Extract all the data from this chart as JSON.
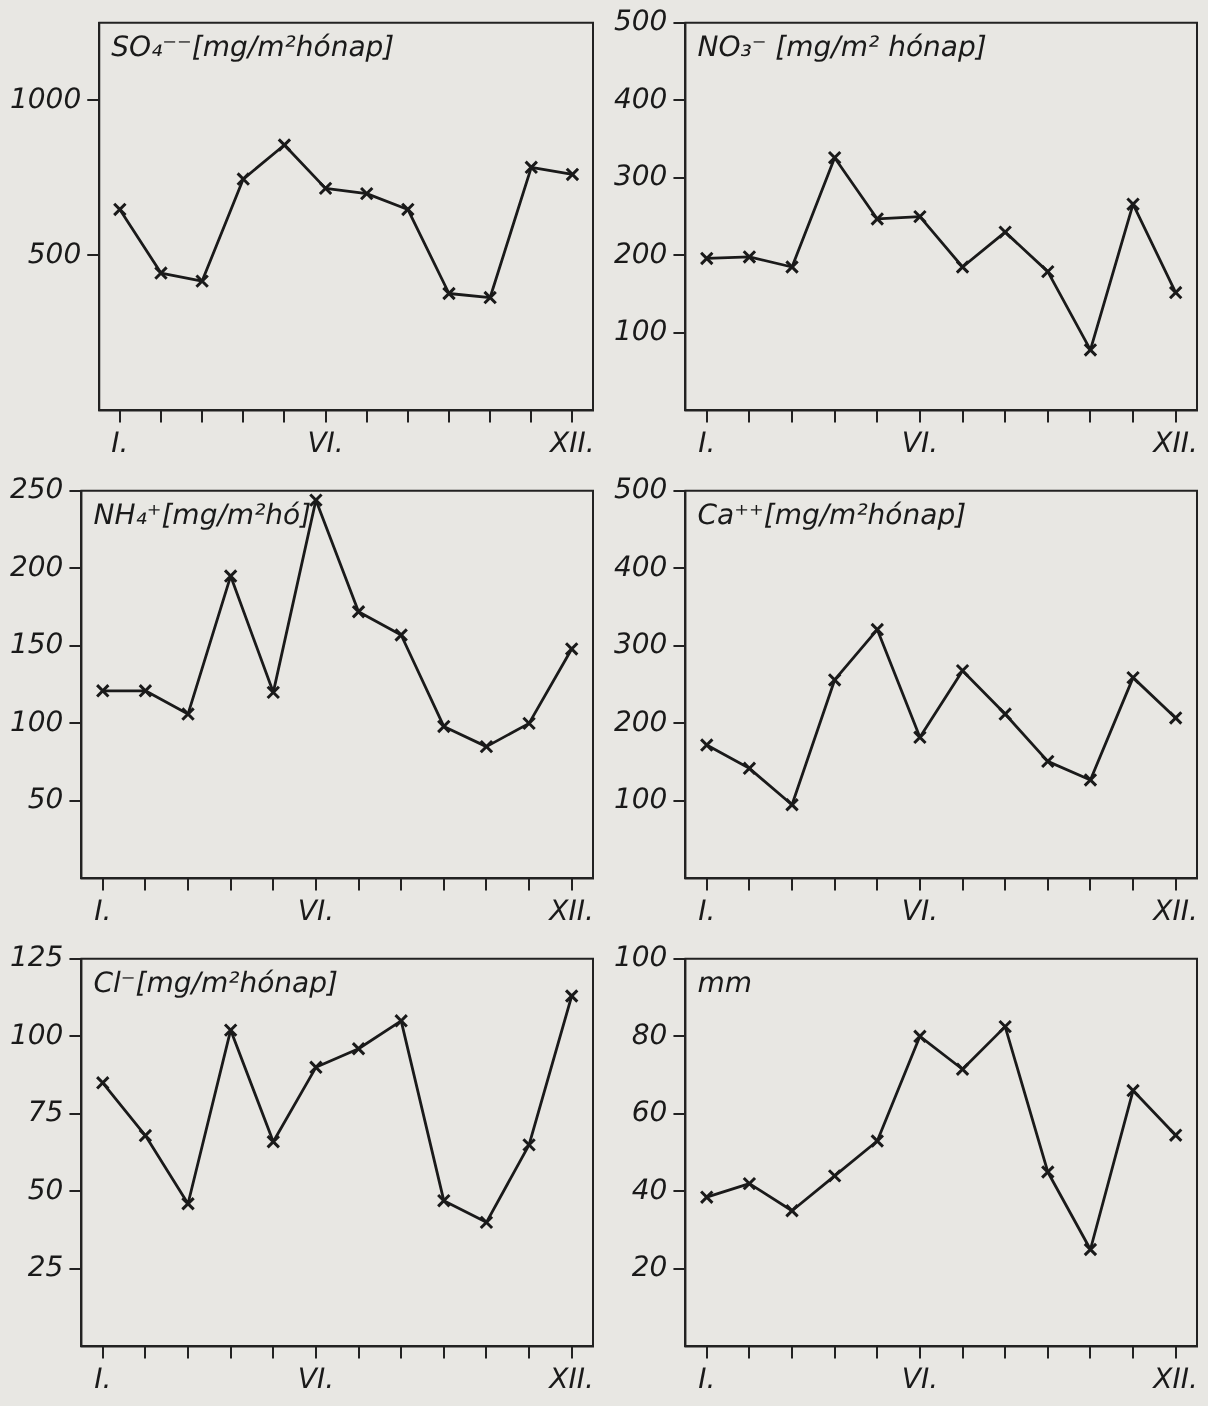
{
  "chart_data": [
    {
      "type": "line",
      "title": "SO₄⁻⁻[mg/m²hónap]",
      "categories": [
        "I.",
        null,
        null,
        null,
        null,
        "VI.",
        null,
        null,
        null,
        null,
        null,
        "XII."
      ],
      "series": [
        {
          "color": "#1a1a1a",
          "values": [
            648,
            443,
            417,
            746,
            856,
            716,
            699,
            648,
            377,
            364,
            784,
            761
          ]
        }
      ],
      "ylim": [
        0,
        1250
      ],
      "yticks": [
        500,
        1000
      ],
      "grid": false,
      "legend": false,
      "marker": "cross",
      "line_style": "solid"
    },
    {
      "type": "line",
      "title": "NO₃⁻ [mg/m² hónap]",
      "categories": [
        "I.",
        null,
        null,
        null,
        null,
        "VI.",
        null,
        null,
        null,
        null,
        null,
        "XII."
      ],
      "series": [
        {
          "color": "#1a1a1a",
          "values": [
            196,
            198,
            185,
            326,
            247,
            250,
            185,
            230,
            179,
            78,
            266,
            152
          ]
        }
      ],
      "ylim": [
        0,
        500
      ],
      "yticks": [
        100,
        200,
        300,
        400,
        500
      ],
      "grid": false,
      "legend": false,
      "marker": "cross",
      "line_style": "solid"
    },
    {
      "type": "line",
      "title": "NH₄⁺[mg/m²hó]",
      "categories": [
        "I.",
        null,
        null,
        null,
        null,
        "VI.",
        null,
        null,
        null,
        null,
        null,
        "XII."
      ],
      "series": [
        {
          "color": "#1a1a1a",
          "values": [
            121,
            121,
            106,
            195,
            120,
            244,
            172,
            157,
            98,
            85,
            100,
            148
          ]
        }
      ],
      "ylim": [
        0,
        250
      ],
      "yticks": [
        50,
        100,
        150,
        200,
        250
      ],
      "grid": false,
      "legend": false,
      "marker": "cross",
      "line_style": "solid"
    },
    {
      "type": "line",
      "title": "Ca⁺⁺[mg/m²hónap]",
      "categories": [
        "I.",
        null,
        null,
        null,
        null,
        "VI.",
        null,
        null,
        null,
        null,
        null,
        "XII."
      ],
      "series": [
        {
          "color": "#1a1a1a",
          "values": [
            172,
            142,
            95,
            256,
            321,
            182,
            268,
            212,
            151,
            127,
            259,
            207
          ]
        }
      ],
      "ylim": [
        0,
        500
      ],
      "yticks": [
        100,
        200,
        300,
        400,
        500
      ],
      "grid": false,
      "legend": false,
      "marker": "cross",
      "line_style": "solid"
    },
    {
      "type": "line",
      "title": "Cl⁻[mg/m²hónap]",
      "categories": [
        "I.",
        null,
        null,
        null,
        null,
        "VI.",
        null,
        null,
        null,
        null,
        null,
        "XII."
      ],
      "series": [
        {
          "color": "#1a1a1a",
          "values": [
            85,
            68,
            46,
            102,
            66,
            90,
            96,
            105,
            47,
            40,
            65,
            113
          ]
        }
      ],
      "ylim": [
        0,
        125
      ],
      "yticks": [
        25,
        50,
        75,
        100,
        125
      ],
      "grid": false,
      "legend": false,
      "marker": "cross",
      "line_style": "solid"
    },
    {
      "type": "line",
      "title": "mm",
      "categories": [
        "I.",
        null,
        null,
        null,
        null,
        "VI.",
        null,
        null,
        null,
        null,
        null,
        "XII."
      ],
      "series": [
        {
          "color": "#1a1a1a",
          "values": [
            38.5,
            42,
            35,
            44,
            53,
            80,
            71.5,
            82.5,
            45,
            25,
            66,
            54.5
          ]
        }
      ],
      "ylim": [
        0,
        100
      ],
      "yticks": [
        20,
        40,
        60,
        80,
        100
      ],
      "grid": false,
      "legend": false,
      "marker": "cross",
      "line_style": "solid"
    }
  ]
}
